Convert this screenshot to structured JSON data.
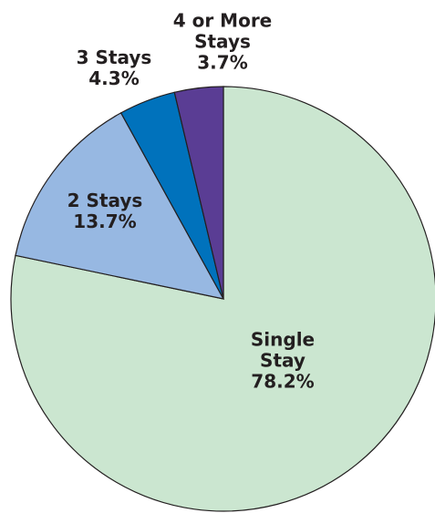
{
  "chart_data": {
    "type": "pie",
    "categories": [
      "Single Stay",
      "2 Stays",
      "3 Stays",
      "4 or More Stays"
    ],
    "values": [
      78.2,
      13.7,
      4.3,
      3.7
    ],
    "value_labels": [
      "78.2%",
      "13.7%",
      "4.3%",
      "3.7%"
    ],
    "colors": [
      "#cbe6d0",
      "#97b8e2",
      "#0072bc",
      "#5a3d94"
    ]
  }
}
